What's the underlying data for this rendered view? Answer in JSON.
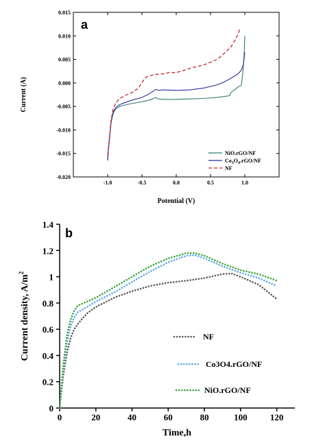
{
  "chart_data": [
    {
      "type": "line",
      "panel_label": "a",
      "xlabel": "Potential (V)",
      "ylabel": "Current (A)",
      "xlim": [
        -1.5,
        1.5
      ],
      "ylim": [
        -0.02,
        0.015
      ],
      "xticks": [
        {
          "v": -1.0,
          "label": "-1.0"
        },
        {
          "v": -0.5,
          "label": "-0.5"
        },
        {
          "v": 0.0,
          "label": "0.0"
        },
        {
          "v": 0.5,
          "label": "0.5"
        },
        {
          "v": 1.0,
          "label": "1.0"
        }
      ],
      "yticks": [
        {
          "v": -0.02,
          "label": "-0.020"
        },
        {
          "v": -0.015,
          "label": "-0.015"
        },
        {
          "v": -0.01,
          "label": "-0.010"
        },
        {
          "v": -0.005,
          "label": "-0.005"
        },
        {
          "v": 0.0,
          "label": "0.000"
        },
        {
          "v": 0.005,
          "label": "0.005"
        },
        {
          "v": 0.01,
          "label": "0.010"
        },
        {
          "v": 0.015,
          "label": "0.015"
        }
      ],
      "legend_position": "bottom-right",
      "series": [
        {
          "name": "NiO.rGO/NF",
          "color": "#2e7d6f",
          "dash": "solid",
          "x": [
            -1.0,
            -0.99,
            -0.97,
            -0.95,
            -0.92,
            -0.88,
            -0.82,
            -0.75,
            -0.65,
            -0.5,
            -0.4,
            -0.33,
            -0.3,
            -0.27,
            -0.2,
            0.0,
            0.2,
            0.4,
            0.6,
            0.7,
            0.78,
            0.8,
            0.85,
            0.9,
            0.95,
            0.97,
            0.99,
            1.0
          ],
          "y": [
            -0.0165,
            -0.0145,
            -0.0115,
            -0.0085,
            -0.0065,
            -0.0055,
            -0.005,
            -0.0047,
            -0.0044,
            -0.004,
            -0.0037,
            -0.0033,
            -0.0031,
            -0.0034,
            -0.0035,
            -0.0035,
            -0.0034,
            -0.0033,
            -0.0031,
            -0.0029,
            -0.0027,
            -0.002,
            -0.0015,
            -0.0009,
            -0.0005,
            0.002,
            0.006,
            0.01
          ]
        },
        {
          "name": "Co3O4.rGO/NF",
          "name_parts": [
            "Co",
            "3",
            "O",
            "4",
            ".rGO/NF"
          ],
          "color": "#2b2b9e",
          "dash": "solid",
          "x": [
            -1.0,
            -0.99,
            -0.97,
            -0.95,
            -0.92,
            -0.88,
            -0.82,
            -0.75,
            -0.65,
            -0.5,
            -0.4,
            -0.35,
            -0.3,
            -0.25,
            -0.2,
            0.0,
            0.2,
            0.4,
            0.6,
            0.7,
            0.8,
            0.9,
            0.95,
            0.98,
            1.0
          ],
          "y": [
            -0.0165,
            -0.0142,
            -0.0112,
            -0.0082,
            -0.0062,
            -0.0052,
            -0.0046,
            -0.0042,
            -0.0037,
            -0.0031,
            -0.0024,
            -0.0019,
            -0.0014,
            -0.0016,
            -0.0015,
            -0.0016,
            -0.0015,
            -0.0011,
            -0.0004,
            0.0002,
            0.001,
            0.0019,
            0.0027,
            0.004,
            0.0065
          ]
        },
        {
          "name": "NF",
          "color": "#c0262d",
          "dash": "dashed",
          "x": [
            -1.0,
            -0.97,
            -0.95,
            -0.92,
            -0.88,
            -0.82,
            -0.75,
            -0.65,
            -0.55,
            -0.5,
            -0.45,
            -0.4,
            -0.3,
            -0.2,
            -0.1,
            0.0,
            0.1,
            0.2,
            0.3,
            0.4,
            0.5,
            0.6,
            0.7,
            0.8,
            0.85,
            0.9,
            0.93
          ],
          "y": [
            -0.0155,
            -0.011,
            -0.008,
            -0.0055,
            -0.0042,
            -0.0033,
            -0.0027,
            -0.0021,
            -0.0011,
            0.0001,
            0.0011,
            0.0015,
            0.0018,
            0.0019,
            0.0022,
            0.0022,
            0.0026,
            0.0031,
            0.0035,
            0.0038,
            0.0044,
            0.005,
            0.0063,
            0.0077,
            0.0089,
            0.0103,
            0.0117
          ]
        }
      ]
    },
    {
      "type": "line",
      "panel_label": "b",
      "xlabel": "Time,h",
      "ylabel": "Current density, A/m",
      "ylabel_sup": "2",
      "xlim": [
        0,
        130
      ],
      "ylim": [
        0,
        1.4
      ],
      "xticks": [
        {
          "v": 0,
          "label": "0"
        },
        {
          "v": 20,
          "label": "20"
        },
        {
          "v": 40,
          "label": "40"
        },
        {
          "v": 60,
          "label": "60"
        },
        {
          "v": 80,
          "label": "80"
        },
        {
          "v": 100,
          "label": "100"
        },
        {
          "v": 120,
          "label": "120"
        }
      ],
      "yticks": [
        {
          "v": 0,
          "label": "0"
        },
        {
          "v": 0.2,
          "label": "0.2"
        },
        {
          "v": 0.4,
          "label": "0.4"
        },
        {
          "v": 0.6,
          "label": "0.6"
        },
        {
          "v": 0.8,
          "label": "0.8"
        },
        {
          "v": 1.0,
          "label": "1"
        },
        {
          "v": 1.2,
          "label": "1.2"
        },
        {
          "v": 1.4,
          "label": "1.4"
        }
      ],
      "legend_position": "bottom-right",
      "series": [
        {
          "name": "NF",
          "color": "#5a5a5a",
          "dash": "dotted",
          "x": [
            0,
            2,
            4,
            6,
            8,
            10,
            15,
            20,
            30,
            40,
            50,
            60,
            70,
            80,
            90,
            95,
            100,
            110,
            120
          ],
          "y": [
            0,
            0.25,
            0.42,
            0.53,
            0.6,
            0.64,
            0.72,
            0.77,
            0.84,
            0.89,
            0.93,
            0.955,
            0.97,
            0.99,
            1.02,
            1.025,
            1.0,
            0.94,
            0.83
          ]
        },
        {
          "name": "Co3O4.rGO/NF",
          "color": "#5aa9e6",
          "dash": "dotted",
          "x": [
            0,
            2,
            4,
            6,
            8,
            10,
            15,
            20,
            30,
            40,
            50,
            60,
            70,
            75,
            80,
            90,
            100,
            110,
            120
          ],
          "y": [
            0,
            0.3,
            0.5,
            0.62,
            0.69,
            0.73,
            0.77,
            0.81,
            0.88,
            0.96,
            1.04,
            1.11,
            1.16,
            1.165,
            1.14,
            1.08,
            1.03,
            0.99,
            0.93
          ]
        },
        {
          "name": "NiO.rGO/NF",
          "color": "#3aa53a",
          "dash": "dotted",
          "x": [
            0,
            2,
            4,
            6,
            8,
            10,
            15,
            20,
            30,
            40,
            50,
            60,
            70,
            75,
            80,
            90,
            100,
            110,
            120
          ],
          "y": [
            0,
            0.33,
            0.55,
            0.67,
            0.74,
            0.78,
            0.81,
            0.84,
            0.92,
            1.0,
            1.08,
            1.14,
            1.18,
            1.18,
            1.16,
            1.1,
            1.05,
            1.02,
            0.97
          ]
        }
      ]
    }
  ]
}
